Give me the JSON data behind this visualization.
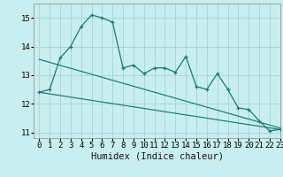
{
  "title": "",
  "xlabel": "Humidex (Indice chaleur)",
  "bg_color": "#c8eef0",
  "grid_color": "#a8d8da",
  "line_color": "#1a7a6e",
  "xlim": [
    -0.5,
    23
  ],
  "ylim": [
    10.8,
    15.5
  ],
  "yticks": [
    11,
    12,
    13,
    14,
    15
  ],
  "xticks": [
    0,
    1,
    2,
    3,
    4,
    5,
    6,
    7,
    8,
    9,
    10,
    11,
    12,
    13,
    14,
    15,
    16,
    17,
    18,
    19,
    20,
    21,
    22,
    23
  ],
  "series1_x": [
    0,
    1,
    2,
    3,
    4,
    5,
    6,
    7,
    8,
    9,
    10,
    11,
    12,
    13,
    14,
    15,
    16,
    17,
    18,
    19,
    20,
    21,
    22,
    23
  ],
  "series1_y": [
    12.4,
    12.5,
    13.6,
    14.0,
    14.7,
    15.1,
    15.0,
    14.85,
    13.25,
    13.35,
    13.05,
    13.25,
    13.25,
    13.1,
    13.65,
    12.6,
    12.5,
    13.05,
    12.5,
    11.85,
    11.8,
    11.4,
    11.05,
    11.1
  ],
  "series2_x": [
    0,
    23
  ],
  "series2_y": [
    13.55,
    11.15
  ],
  "series3_x": [
    0,
    23
  ],
  "series3_y": [
    12.4,
    11.1
  ],
  "xlabel_fontsize": 7.5,
  "tick_fontsize": 6.5
}
